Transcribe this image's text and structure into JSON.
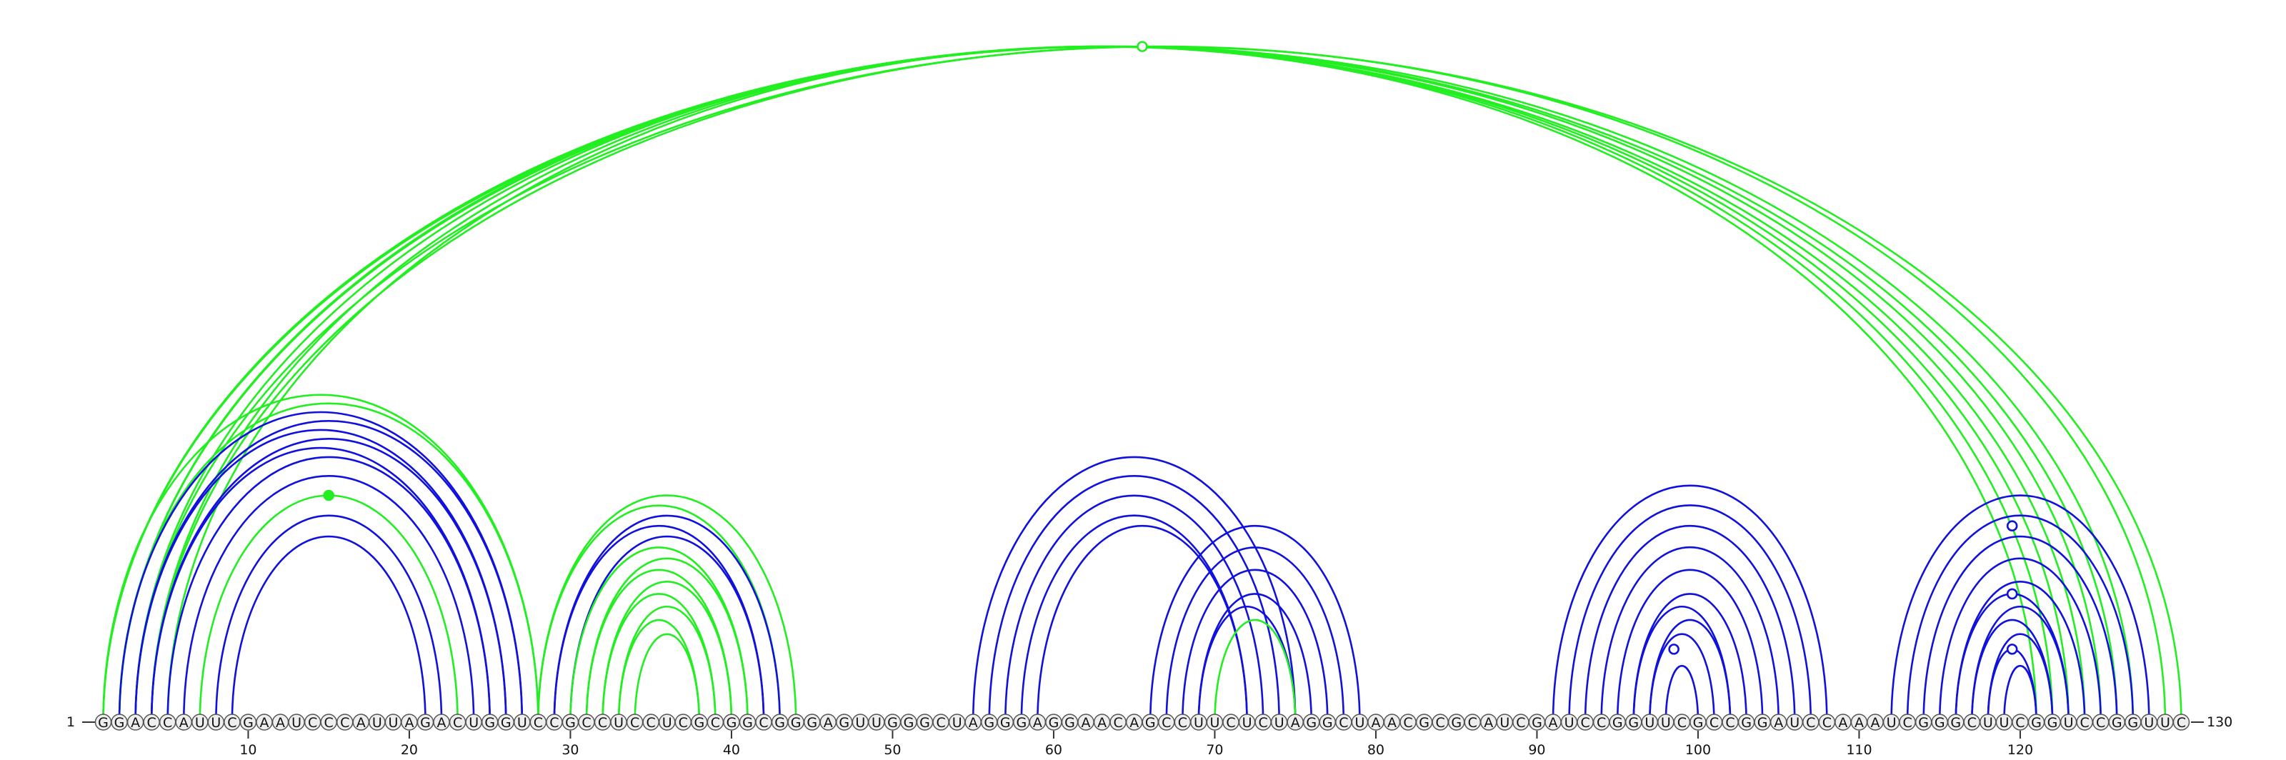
{
  "sequence": "GGACCAUUCGAAUCCCAUUAGACUGGUCCGCCUCCUCGCGGCGGGAGUUGGGCUAGGGAGGAACAGCCUUCUCUAGGCUAACGCGCAUCGAUCCGGUUCGCCGGAUCCAAAUCGGGCUUCGGUCCGGUUC",
  "start_label": "1",
  "end_label": "130",
  "ticks": [
    10,
    20,
    30,
    40,
    50,
    60,
    70,
    80,
    90,
    100,
    110,
    120
  ],
  "colors": {
    "green": "#22ee22",
    "blue": "#1111dd",
    "nucleotide_fill": "#eeeeee",
    "nucleotide_stroke": "#555555"
  },
  "arcs": [
    {
      "i": 1,
      "j": 126,
      "color": "green"
    },
    {
      "i": 1,
      "j": 127,
      "color": "green"
    },
    {
      "i": 2,
      "j": 125,
      "color": "green"
    },
    {
      "i": 2,
      "j": 124,
      "color": "green"
    },
    {
      "i": 3,
      "j": 123,
      "color": "green"
    },
    {
      "i": 3,
      "j": 130,
      "color": "green"
    },
    {
      "i": 4,
      "j": 129,
      "color": "green"
    },
    {
      "i": 4,
      "j": 122,
      "color": "green"
    },
    {
      "i": 5,
      "j": 121,
      "color": "green"
    },
    {
      "i": 1,
      "j": 28,
      "color": "green"
    },
    {
      "i": 2,
      "j": 28,
      "color": "green"
    },
    {
      "i": 2,
      "j": 27,
      "color": "blue"
    },
    {
      "i": 3,
      "j": 27,
      "color": "blue"
    },
    {
      "i": 3,
      "j": 26,
      "color": "blue"
    },
    {
      "i": 4,
      "j": 26,
      "color": "blue"
    },
    {
      "i": 4,
      "j": 25,
      "color": "blue"
    },
    {
      "i": 5,
      "j": 25,
      "color": "blue"
    },
    {
      "i": 6,
      "j": 24,
      "color": "blue"
    },
    {
      "i": 7,
      "j": 23,
      "color": "green"
    },
    {
      "i": 8,
      "j": 22,
      "color": "blue"
    },
    {
      "i": 9,
      "j": 21,
      "color": "blue"
    },
    {
      "i": 28,
      "j": 44,
      "color": "green"
    },
    {
      "i": 28,
      "j": 43,
      "color": "green"
    },
    {
      "i": 29,
      "j": 43,
      "color": "blue"
    },
    {
      "i": 29,
      "j": 42,
      "color": "blue"
    },
    {
      "i": 30,
      "j": 42,
      "color": "blue"
    },
    {
      "i": 30,
      "j": 41,
      "color": "green"
    },
    {
      "i": 31,
      "j": 41,
      "color": "green"
    },
    {
      "i": 31,
      "j": 40,
      "color": "green"
    },
    {
      "i": 32,
      "j": 40,
      "color": "green"
    },
    {
      "i": 32,
      "j": 39,
      "color": "green"
    },
    {
      "i": 33,
      "j": 39,
      "color": "green"
    },
    {
      "i": 33,
      "j": 38,
      "color": "green"
    },
    {
      "i": 34,
      "j": 38,
      "color": "green"
    },
    {
      "i": 55,
      "j": 75,
      "color": "blue"
    },
    {
      "i": 56,
      "j": 74,
      "color": "blue"
    },
    {
      "i": 57,
      "j": 73,
      "color": "blue"
    },
    {
      "i": 58,
      "j": 72,
      "color": "blue"
    },
    {
      "i": 59,
      "j": 72,
      "color": "blue"
    },
    {
      "i": 66,
      "j": 79,
      "color": "blue"
    },
    {
      "i": 67,
      "j": 78,
      "color": "blue"
    },
    {
      "i": 68,
      "j": 77,
      "color": "blue"
    },
    {
      "i": 69,
      "j": 76,
      "color": "blue"
    },
    {
      "i": 69,
      "j": 75,
      "color": "blue"
    },
    {
      "i": 70,
      "j": 75,
      "color": "green"
    },
    {
      "i": 91,
      "j": 108,
      "color": "blue"
    },
    {
      "i": 92,
      "j": 107,
      "color": "blue"
    },
    {
      "i": 93,
      "j": 106,
      "color": "blue"
    },
    {
      "i": 94,
      "j": 105,
      "color": "blue"
    },
    {
      "i": 95,
      "j": 104,
      "color": "blue"
    },
    {
      "i": 96,
      "j": 103,
      "color": "blue"
    },
    {
      "i": 96,
      "j": 102,
      "color": "blue"
    },
    {
      "i": 97,
      "j": 102,
      "color": "blue"
    },
    {
      "i": 97,
      "j": 101,
      "color": "blue"
    },
    {
      "i": 98,
      "j": 100,
      "color": "blue"
    },
    {
      "i": 112,
      "j": 128,
      "color": "blue"
    },
    {
      "i": 113,
      "j": 127,
      "color": "blue"
    },
    {
      "i": 114,
      "j": 126,
      "color": "blue"
    },
    {
      "i": 115,
      "j": 125,
      "color": "blue"
    },
    {
      "i": 116,
      "j": 124,
      "color": "blue"
    },
    {
      "i": 116,
      "j": 123,
      "color": "blue"
    },
    {
      "i": 117,
      "j": 123,
      "color": "blue"
    },
    {
      "i": 117,
      "j": 122,
      "color": "blue"
    },
    {
      "i": 118,
      "j": 122,
      "color": "blue"
    },
    {
      "i": 118,
      "j": 121,
      "color": "blue"
    },
    {
      "i": 119,
      "j": 121,
      "color": "blue"
    }
  ],
  "markers": [
    {
      "nt": 65.5,
      "arc_i": 3,
      "arc_j": 130,
      "color": "green",
      "filled": false
    },
    {
      "nt": 15,
      "arc_i": 7,
      "arc_j": 23,
      "color": "green",
      "filled": true
    },
    {
      "nt": 98.5,
      "arc_i": 97,
      "arc_j": 100,
      "color": "blue",
      "filled": false
    },
    {
      "nt": 119.5,
      "arc_i": 113,
      "arc_j": 126,
      "color": "blue",
      "filled": false
    },
    {
      "nt": 119.5,
      "arc_i": 116,
      "arc_j": 123,
      "color": "blue",
      "filled": false
    },
    {
      "nt": 119.5,
      "arc_i": 118,
      "arc_j": 121,
      "color": "blue",
      "filled": false
    }
  ]
}
